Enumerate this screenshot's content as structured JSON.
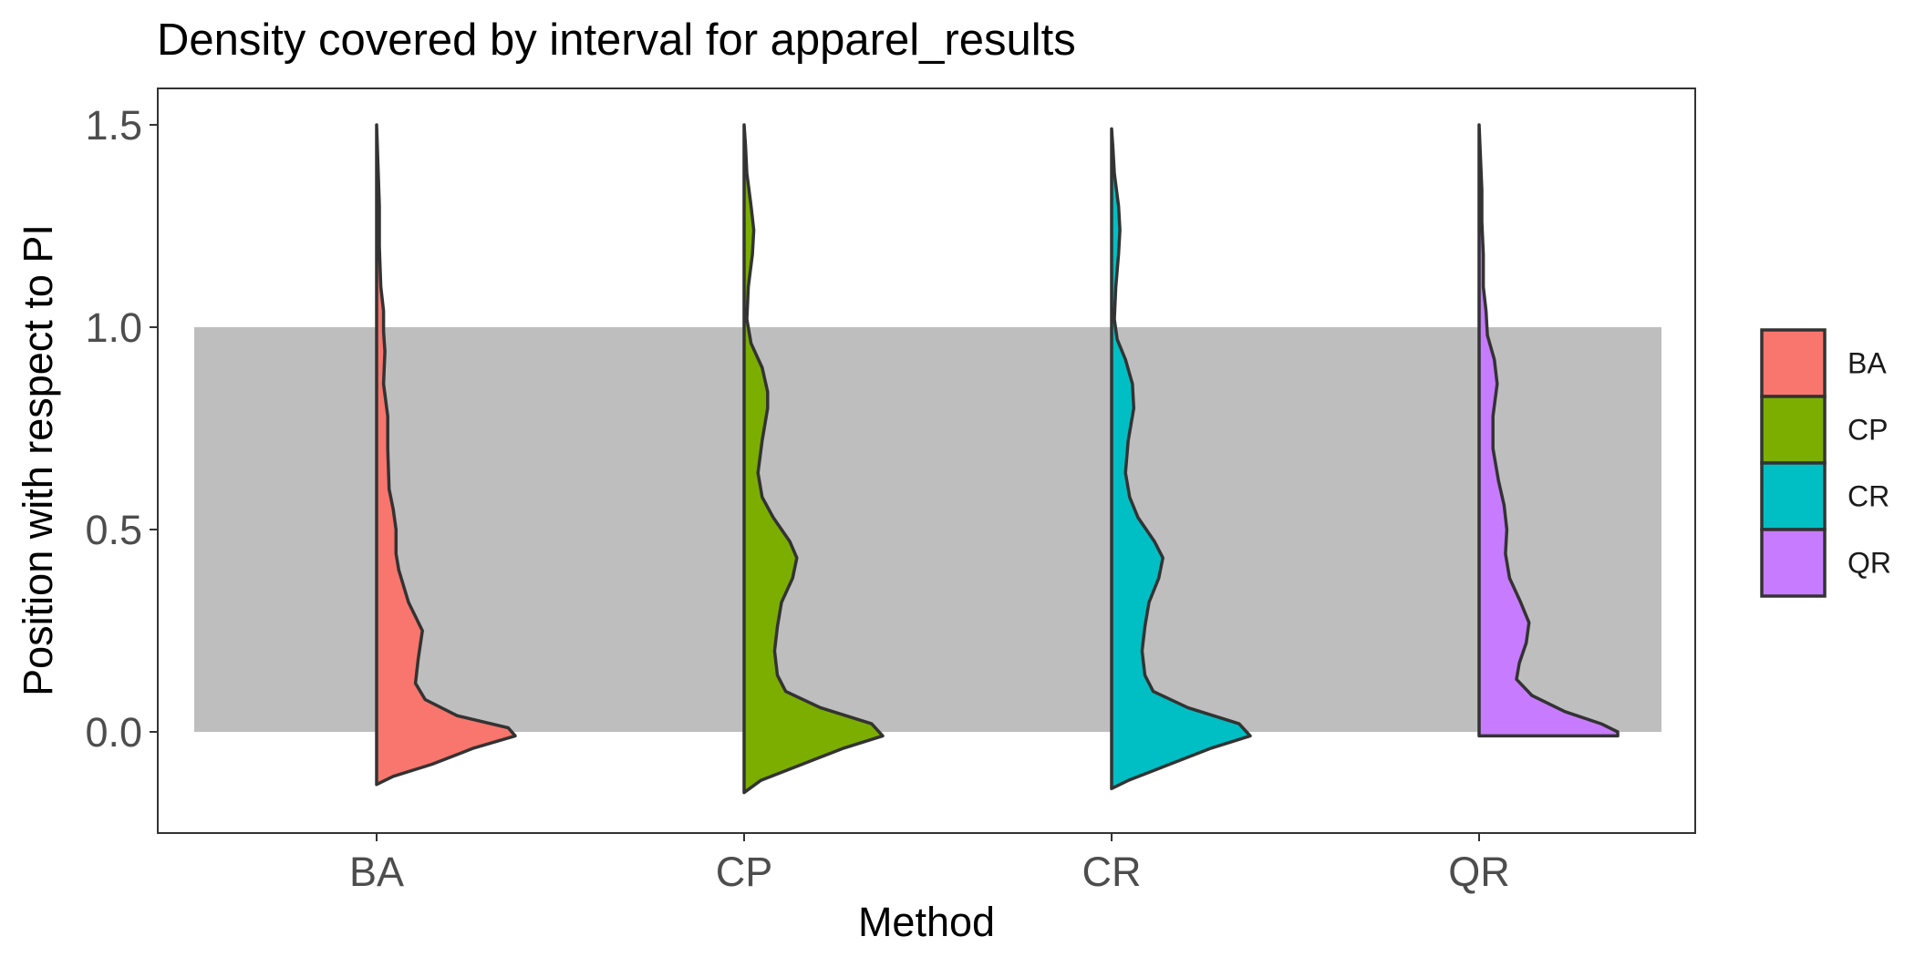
{
  "chart_data": {
    "type": "violin",
    "title": "Density covered by interval for apparel_results",
    "xlabel": "Method",
    "ylabel": "Position with respect to PI",
    "categories": [
      "BA",
      "CP",
      "CR",
      "QR"
    ],
    "ylim": [
      -0.25,
      1.59
    ],
    "yticks": [
      0.0,
      0.5,
      1.0,
      1.5
    ],
    "ytick_labels": [
      "0.0",
      "0.5",
      "1.0",
      "1.5"
    ],
    "interval_band": {
      "from": 0.0,
      "to": 1.0,
      "color": "#bebebe"
    },
    "grid": false,
    "legend_position": "right",
    "legend": [
      {
        "label": "BA",
        "color": "#F8766D"
      },
      {
        "label": "CP",
        "color": "#7CAE00"
      },
      {
        "label": "CR",
        "color": "#00BFC4"
      },
      {
        "label": "QR",
        "color": "#C77CFF"
      }
    ],
    "series": [
      {
        "name": "BA",
        "color": "#F8766D",
        "density": [
          [
            -0.13,
            0
          ],
          [
            -0.11,
            0.12
          ],
          [
            -0.08,
            0.4
          ],
          [
            -0.04,
            0.7
          ],
          [
            -0.01,
            1.0
          ],
          [
            0.01,
            0.95
          ],
          [
            0.04,
            0.58
          ],
          [
            0.08,
            0.35
          ],
          [
            0.12,
            0.28
          ],
          [
            0.18,
            0.3
          ],
          [
            0.25,
            0.33
          ],
          [
            0.32,
            0.23
          ],
          [
            0.4,
            0.16
          ],
          [
            0.44,
            0.14
          ],
          [
            0.5,
            0.14
          ],
          [
            0.55,
            0.12
          ],
          [
            0.6,
            0.09
          ],
          [
            0.7,
            0.08
          ],
          [
            0.78,
            0.08
          ],
          [
            0.86,
            0.05
          ],
          [
            0.94,
            0.06
          ],
          [
            0.99,
            0.05
          ],
          [
            1.04,
            0.05
          ],
          [
            1.1,
            0.03
          ],
          [
            1.2,
            0.02
          ],
          [
            1.3,
            0.02
          ],
          [
            1.4,
            0.01
          ],
          [
            1.5,
            0
          ]
        ]
      },
      {
        "name": "CP",
        "color": "#7CAE00",
        "density": [
          [
            -0.15,
            0
          ],
          [
            -0.12,
            0.12
          ],
          [
            -0.08,
            0.42
          ],
          [
            -0.04,
            0.72
          ],
          [
            -0.01,
            1.0
          ],
          [
            0.02,
            0.92
          ],
          [
            0.06,
            0.55
          ],
          [
            0.1,
            0.3
          ],
          [
            0.14,
            0.24
          ],
          [
            0.2,
            0.22
          ],
          [
            0.26,
            0.24
          ],
          [
            0.32,
            0.27
          ],
          [
            0.38,
            0.35
          ],
          [
            0.43,
            0.38
          ],
          [
            0.47,
            0.33
          ],
          [
            0.53,
            0.21
          ],
          [
            0.58,
            0.13
          ],
          [
            0.64,
            0.1
          ],
          [
            0.72,
            0.13
          ],
          [
            0.8,
            0.17
          ],
          [
            0.84,
            0.17
          ],
          [
            0.9,
            0.13
          ],
          [
            0.96,
            0.05
          ],
          [
            1.02,
            0.02
          ],
          [
            1.1,
            0.03
          ],
          [
            1.18,
            0.06
          ],
          [
            1.24,
            0.07
          ],
          [
            1.3,
            0.05
          ],
          [
            1.38,
            0.02
          ],
          [
            1.45,
            0.01
          ],
          [
            1.5,
            0
          ]
        ]
      },
      {
        "name": "CR",
        "color": "#00BFC4",
        "density": [
          [
            -0.14,
            0
          ],
          [
            -0.12,
            0.12
          ],
          [
            -0.08,
            0.42
          ],
          [
            -0.04,
            0.72
          ],
          [
            -0.01,
            1.0
          ],
          [
            0.02,
            0.92
          ],
          [
            0.06,
            0.55
          ],
          [
            0.1,
            0.3
          ],
          [
            0.14,
            0.24
          ],
          [
            0.2,
            0.22
          ],
          [
            0.26,
            0.24
          ],
          [
            0.32,
            0.27
          ],
          [
            0.38,
            0.34
          ],
          [
            0.43,
            0.37
          ],
          [
            0.47,
            0.31
          ],
          [
            0.53,
            0.19
          ],
          [
            0.58,
            0.13
          ],
          [
            0.64,
            0.1
          ],
          [
            0.72,
            0.12
          ],
          [
            0.8,
            0.16
          ],
          [
            0.86,
            0.15
          ],
          [
            0.92,
            0.1
          ],
          [
            0.97,
            0.04
          ],
          [
            1.02,
            0.02
          ],
          [
            1.1,
            0.03
          ],
          [
            1.18,
            0.05
          ],
          [
            1.24,
            0.06
          ],
          [
            1.3,
            0.05
          ],
          [
            1.38,
            0.02
          ],
          [
            1.44,
            0.01
          ],
          [
            1.49,
            0
          ]
        ]
      },
      {
        "name": "QR",
        "color": "#C77CFF",
        "density": [
          [
            -0.01,
            0
          ],
          [
            -0.01,
            1.0
          ],
          [
            0.0,
            1.0
          ],
          [
            0.02,
            0.88
          ],
          [
            0.05,
            0.62
          ],
          [
            0.09,
            0.38
          ],
          [
            0.13,
            0.27
          ],
          [
            0.17,
            0.29
          ],
          [
            0.22,
            0.34
          ],
          [
            0.27,
            0.36
          ],
          [
            0.32,
            0.3
          ],
          [
            0.38,
            0.22
          ],
          [
            0.44,
            0.19
          ],
          [
            0.5,
            0.2
          ],
          [
            0.56,
            0.18
          ],
          [
            0.62,
            0.14
          ],
          [
            0.7,
            0.1
          ],
          [
            0.78,
            0.1
          ],
          [
            0.86,
            0.13
          ],
          [
            0.92,
            0.11
          ],
          [
            0.98,
            0.06
          ],
          [
            1.04,
            0.05
          ],
          [
            1.1,
            0.03
          ],
          [
            1.18,
            0.03
          ],
          [
            1.26,
            0.02
          ],
          [
            1.34,
            0.02
          ],
          [
            1.42,
            0.01
          ],
          [
            1.5,
            0
          ]
        ]
      }
    ]
  }
}
